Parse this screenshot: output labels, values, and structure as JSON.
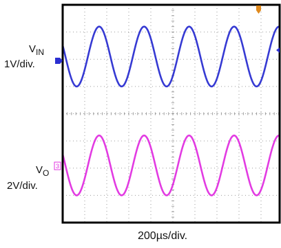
{
  "scope": {
    "time_scale": "200µs/div.",
    "channel_markers": {
      "ch1": "1",
      "ch3": "3",
      "trigger": "T"
    }
  },
  "chart_data": {
    "type": "line",
    "xlabel": "200µs/div.",
    "grid": true,
    "x_divisions": 10,
    "y_divisions": 8,
    "xlim": [
      0,
      10
    ],
    "series": [
      {
        "name_main": "V",
        "name_sub": "IN",
        "scale_label": "1V/div.",
        "color": "#2b2fd1",
        "amplitude_div": 1.1,
        "center_div": 2.1,
        "cycles_per_div": 0.49,
        "phase_deg": -22
      },
      {
        "name_main": "V",
        "name_sub": "O",
        "scale_label": "2V/div.",
        "color": "#e030e0",
        "amplitude_div": 1.1,
        "center_div": -1.9,
        "cycles_per_div": 0.49,
        "phase_deg": -22
      }
    ],
    "colors": {
      "frame": "#000000",
      "grid": "#9a9a9a",
      "trigger": "#e08a1e",
      "marker_blue": "#2b2fd1"
    }
  }
}
